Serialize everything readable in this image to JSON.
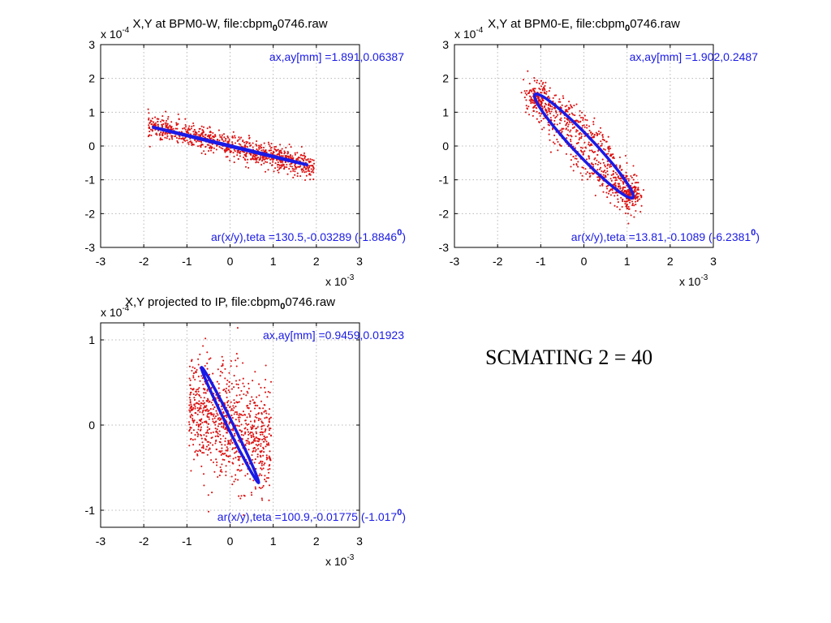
{
  "slide_text": "SCMATING 2 = 40",
  "colors": {
    "points": "#dd1111",
    "ellipse": "#1a1ae6",
    "grid": "#b8b8b8",
    "axes": "#000000",
    "annotation": "#1a1ae6"
  },
  "chart_data": [
    {
      "type": "scatter",
      "title_parts": {
        "pre": "X,Y at BPM0-W, file:cbpm",
        "sub": "0",
        "post": "0746.raw"
      },
      "x_tick_labels": [
        "-3",
        "-2",
        "-1",
        "0",
        "1",
        "2",
        "3"
      ],
      "y_tick_labels": [
        "3",
        "2",
        "1",
        "0",
        "-1",
        "-2",
        "-3"
      ],
      "x_ticks": [
        -3,
        -2,
        -1,
        0,
        1,
        2,
        3
      ],
      "y_ticks": [
        3,
        2,
        1,
        0,
        -1,
        -2,
        -3
      ],
      "xlim": [
        -3,
        3
      ],
      "ylim": [
        -3,
        3
      ],
      "x_exponent": "-3",
      "y_exponent": "-4",
      "annotation_top": "ax,ay[mm] =1.891,0.06387",
      "annotation_bottom": {
        "text": "ar(x/y),teta =130.5,-0.03289 (-1.8846",
        "sup": "0",
        "close": ")"
      },
      "ellipse": {
        "cx": 0,
        "cy": 0,
        "a": 1.891,
        "b": 0.0145,
        "angle_deg": -17.3
      },
      "cloud": {
        "xmin": -1.9,
        "xmax": 1.95,
        "slope": -0.32,
        "spread": 0.32,
        "count": 900
      },
      "grid": true
    },
    {
      "type": "scatter",
      "title_parts": {
        "pre": "X,Y at BPM0-E, file:cbpm",
        "sub": "0",
        "post": "0746.raw"
      },
      "x_tick_labels": [
        "-3",
        "-2",
        "-1",
        "0",
        "1",
        "2",
        "3"
      ],
      "y_tick_labels": [
        "3",
        "2",
        "1",
        "0",
        "-1",
        "-2",
        "-3"
      ],
      "x_ticks": [
        -3,
        -2,
        -1,
        0,
        1,
        2,
        3
      ],
      "y_ticks": [
        3,
        2,
        1,
        0,
        -1,
        -2,
        -3
      ],
      "xlim": [
        -3,
        3
      ],
      "ylim": [
        -3,
        3
      ],
      "x_exponent": "-3",
      "y_exponent": "-4",
      "annotation_top": "ax,ay[mm] =1.902,0.2487",
      "annotation_bottom": {
        "text": "ar(x/y),teta =13.81,-0.1089 (-6.2381",
        "sup": "0",
        "close": ")"
      },
      "ellipse": {
        "cx": 0,
        "cy": 0,
        "a": 1.902,
        "b": 0.2487,
        "angle_deg": -53.7
      },
      "cloud": {
        "ring": true,
        "jitter": 0.13,
        "count": 900
      },
      "grid": true
    },
    {
      "type": "scatter",
      "title_parts": {
        "pre": "X,Y projected to IP, file:cbpm",
        "sub": "0",
        "post": "0746.raw"
      },
      "x_tick_labels": [
        "-3",
        "-2",
        "-1",
        "0",
        "1",
        "2",
        "3"
      ],
      "y_tick_labels": [
        "1",
        "0",
        "-1"
      ],
      "x_ticks": [
        -3,
        -2,
        -1,
        0,
        1,
        2,
        3
      ],
      "y_ticks": [
        1,
        0,
        -1
      ],
      "xlim": [
        -3,
        3
      ],
      "ylim": [
        -1.2,
        1.2
      ],
      "x_exponent": "-3",
      "y_exponent": "-4",
      "annotation_top": "ax,ay[mm] =0.9459,0.01923",
      "annotation_bottom": {
        "text": "ar(x/y),teta =100.9,-0.01775 (-1.017",
        "sup": "0",
        "close": ")"
      },
      "ellipse": {
        "cx": 0,
        "cy": 0,
        "a": 0.9459,
        "b": 0.0555,
        "angle_deg": -45.6
      },
      "cloud": {
        "xmin": -0.95,
        "xmax": 0.95,
        "slope": -0.2,
        "spread": 0.6,
        "count": 900
      },
      "grid": true
    }
  ]
}
